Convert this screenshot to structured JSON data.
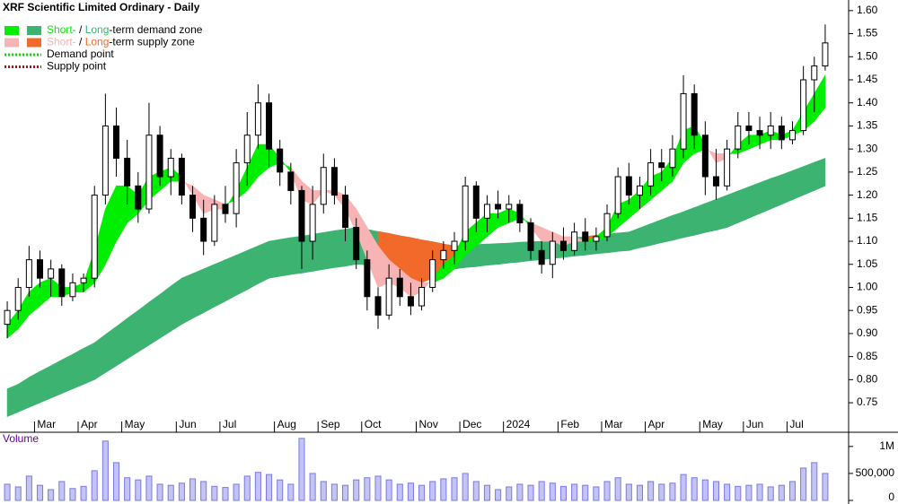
{
  "chart_data": {
    "type": "candlestick",
    "title": "XRF Scientific Limited Ordinary - Daily",
    "categories": [
      null,
      null,
      null,
      "Mar",
      null,
      null,
      null,
      "Apr",
      null,
      null,
      null,
      "May",
      null,
      null,
      null,
      null,
      "Jun",
      null,
      null,
      null,
      "Jul",
      null,
      null,
      null,
      null,
      "Aug",
      null,
      null,
      null,
      "Sep",
      null,
      null,
      null,
      "Oct",
      null,
      null,
      null,
      null,
      "Nov",
      null,
      null,
      null,
      "Dec",
      null,
      null,
      null,
      "2024",
      null,
      null,
      null,
      null,
      "Feb",
      null,
      null,
      null,
      "Mar",
      null,
      null,
      null,
      "Apr",
      null,
      null,
      null,
      null,
      "May",
      null,
      null,
      null,
      "Jun",
      null,
      null,
      null,
      "Jul",
      null,
      null,
      null
    ],
    "open": [
      0.92,
      0.95,
      1.0,
      1.06,
      1.02,
      1.04,
      0.98,
      1.01,
      1.02,
      1.2,
      1.35,
      1.28,
      1.22,
      1.17,
      1.33,
      1.24,
      1.28,
      1.2,
      1.15,
      1.1,
      1.18,
      1.16,
      1.27,
      1.33,
      1.4,
      1.3,
      1.25,
      1.21,
      1.1,
      1.18,
      1.26,
      1.2,
      1.13,
      1.06,
      0.98,
      0.94,
      1.02,
      0.98,
      0.96,
      1.0,
      1.06,
      1.08,
      1.1,
      1.22,
      1.15,
      1.18,
      1.17,
      1.18,
      1.14,
      1.08,
      1.05,
      1.1,
      1.08,
      1.12,
      1.1,
      1.11,
      1.16,
      1.24,
      1.2,
      1.22,
      1.27,
      1.26,
      1.3,
      1.42,
      1.33,
      1.24,
      1.22,
      1.3,
      1.35,
      1.34,
      1.33,
      1.35,
      1.32,
      1.34,
      1.45,
      1.48
    ],
    "high": [
      0.97,
      1.02,
      1.09,
      1.08,
      1.06,
      1.05,
      1.03,
      1.03,
      1.22,
      1.42,
      1.39,
      1.32,
      1.25,
      1.4,
      1.35,
      1.3,
      1.29,
      1.22,
      1.19,
      1.2,
      1.22,
      1.3,
      1.38,
      1.44,
      1.42,
      1.32,
      1.27,
      1.22,
      1.22,
      1.29,
      1.28,
      1.22,
      1.15,
      1.08,
      1.0,
      1.05,
      1.04,
      1.01,
      1.02,
      1.08,
      1.1,
      1.12,
      1.24,
      1.23,
      1.2,
      1.21,
      1.2,
      1.19,
      1.15,
      1.1,
      1.12,
      1.13,
      1.14,
      1.15,
      1.13,
      1.18,
      1.26,
      1.27,
      1.24,
      1.3,
      1.3,
      1.33,
      1.46,
      1.44,
      1.36,
      1.3,
      1.32,
      1.38,
      1.38,
      1.37,
      1.38,
      1.37,
      1.36,
      1.48,
      1.5,
      1.57
    ],
    "low": [
      0.89,
      0.93,
      0.98,
      1.0,
      0.98,
      0.96,
      0.97,
      0.99,
      1.0,
      1.18,
      1.24,
      1.18,
      1.14,
      1.16,
      1.22,
      1.2,
      1.18,
      1.12,
      1.07,
      1.09,
      1.14,
      1.13,
      1.22,
      1.3,
      1.26,
      1.22,
      1.18,
      1.04,
      1.06,
      1.16,
      1.18,
      1.1,
      1.04,
      0.95,
      0.91,
      0.93,
      0.96,
      0.94,
      0.95,
      0.99,
      1.04,
      1.05,
      1.08,
      1.12,
      1.12,
      1.15,
      1.14,
      1.12,
      1.06,
      1.03,
      1.02,
      1.06,
      1.07,
      1.08,
      1.08,
      1.1,
      1.15,
      1.18,
      1.17,
      1.2,
      1.23,
      1.24,
      1.28,
      1.3,
      1.2,
      1.19,
      1.21,
      1.28,
      1.31,
      1.3,
      1.3,
      1.3,
      1.31,
      1.33,
      1.38,
      1.47
    ],
    "close": [
      0.95,
      1.0,
      1.06,
      1.02,
      1.04,
      0.98,
      1.01,
      1.02,
      1.2,
      1.35,
      1.28,
      1.22,
      1.17,
      1.33,
      1.24,
      1.28,
      1.2,
      1.15,
      1.1,
      1.18,
      1.16,
      1.27,
      1.33,
      1.4,
      1.3,
      1.25,
      1.21,
      1.1,
      1.18,
      1.26,
      1.2,
      1.13,
      1.06,
      0.98,
      0.94,
      1.02,
      0.98,
      0.96,
      1.0,
      1.06,
      1.08,
      1.1,
      1.22,
      1.15,
      1.18,
      1.17,
      1.18,
      1.14,
      1.08,
      1.05,
      1.1,
      1.08,
      1.12,
      1.1,
      1.11,
      1.16,
      1.24,
      1.2,
      1.22,
      1.27,
      1.26,
      1.3,
      1.42,
      1.33,
      1.24,
      1.22,
      1.3,
      1.35,
      1.34,
      1.33,
      1.35,
      1.32,
      1.34,
      1.45,
      1.48,
      1.53
    ],
    "candle_colors": {
      "up": "#ffffff",
      "down": "#000000",
      "outline": "#000000"
    },
    "short_zone": {
      "fast": [
        0.92,
        0.95,
        0.99,
        1.01,
        1.02,
        1.0,
        1.0,
        1.01,
        1.08,
        1.17,
        1.22,
        1.22,
        1.2,
        1.24,
        1.25,
        1.26,
        1.24,
        1.2,
        1.16,
        1.17,
        1.17,
        1.21,
        1.26,
        1.31,
        1.31,
        1.28,
        1.25,
        1.19,
        1.18,
        1.21,
        1.2,
        1.17,
        1.12,
        1.06,
        1.0,
        1.01,
        1.0,
        0.98,
        0.99,
        1.02,
        1.05,
        1.07,
        1.12,
        1.14,
        1.16,
        1.16,
        1.17,
        1.16,
        1.13,
        1.1,
        1.1,
        1.09,
        1.1,
        1.1,
        1.11,
        1.13,
        1.18,
        1.19,
        1.21,
        1.24,
        1.25,
        1.28,
        1.34,
        1.35,
        1.31,
        1.27,
        1.28,
        1.31,
        1.33,
        1.33,
        1.34,
        1.33,
        1.34,
        1.38,
        1.42,
        1.46
      ],
      "slow": [
        0.89,
        0.91,
        0.94,
        0.96,
        0.98,
        0.98,
        0.99,
        0.99,
        1.01,
        1.05,
        1.1,
        1.14,
        1.16,
        1.19,
        1.21,
        1.23,
        1.23,
        1.22,
        1.2,
        1.19,
        1.18,
        1.19,
        1.21,
        1.24,
        1.26,
        1.27,
        1.26,
        1.23,
        1.21,
        1.21,
        1.21,
        1.2,
        1.17,
        1.13,
        1.09,
        1.06,
        1.04,
        1.02,
        1.01,
        1.01,
        1.02,
        1.04,
        1.07,
        1.09,
        1.11,
        1.13,
        1.14,
        1.15,
        1.14,
        1.13,
        1.12,
        1.11,
        1.11,
        1.1,
        1.1,
        1.11,
        1.13,
        1.15,
        1.17,
        1.19,
        1.21,
        1.23,
        1.27,
        1.29,
        1.3,
        1.29,
        1.29,
        1.29,
        1.3,
        1.31,
        1.32,
        1.32,
        1.33,
        1.34,
        1.36,
        1.39
      ]
    },
    "long_zone": {
      "fast": [
        0.78,
        0.79,
        0.805,
        0.818,
        0.83,
        0.843,
        0.855,
        0.868,
        0.88,
        0.898,
        0.915,
        0.933,
        0.95,
        0.968,
        0.985,
        1.003,
        1.02,
        1.03,
        1.04,
        1.05,
        1.06,
        1.07,
        1.08,
        1.09,
        1.1,
        1.104,
        1.108,
        1.111,
        1.115,
        1.119,
        1.123,
        1.126,
        1.13,
        1.126,
        1.121,
        1.117,
        1.112,
        1.108,
        1.103,
        1.099,
        1.094,
        1.09,
        1.091,
        1.093,
        1.094,
        1.095,
        1.096,
        1.098,
        1.099,
        1.1,
        1.103,
        1.105,
        1.108,
        1.11,
        1.113,
        1.115,
        1.118,
        1.12,
        1.129,
        1.138,
        1.147,
        1.156,
        1.164,
        1.173,
        1.182,
        1.191,
        1.2,
        1.209,
        1.218,
        1.227,
        1.236,
        1.244,
        1.253,
        1.262,
        1.271,
        1.28
      ],
      "slow": [
        0.72,
        0.73,
        0.74,
        0.75,
        0.76,
        0.77,
        0.78,
        0.79,
        0.8,
        0.815,
        0.83,
        0.845,
        0.86,
        0.875,
        0.89,
        0.905,
        0.92,
        0.933,
        0.945,
        0.958,
        0.97,
        0.983,
        0.995,
        1.008,
        1.02,
        1.024,
        1.028,
        1.031,
        1.035,
        1.039,
        1.043,
        1.046,
        1.05,
        1.049,
        1.048,
        1.047,
        1.046,
        1.044,
        1.043,
        1.042,
        1.041,
        1.04,
        1.043,
        1.045,
        1.048,
        1.05,
        1.053,
        1.055,
        1.058,
        1.06,
        1.063,
        1.065,
        1.068,
        1.07,
        1.073,
        1.075,
        1.078,
        1.08,
        1.086,
        1.091,
        1.097,
        1.102,
        1.108,
        1.113,
        1.119,
        1.124,
        1.13,
        1.14,
        1.15,
        1.16,
        1.17,
        1.18,
        1.19,
        1.2,
        1.21,
        1.22
      ]
    },
    "ylim": [
      0.686,
      1.623
    ],
    "yticks": [
      0.75,
      {
        "value": 0.8,
        "label": "0.80"
      },
      0.85,
      {
        "value": 0.9,
        "label": "0.90"
      },
      0.95,
      {
        "value": 1.0,
        "label": "1.00"
      },
      1.05,
      {
        "value": 1.1,
        "label": "1.10"
      },
      1.15,
      {
        "value": 1.2,
        "label": "1.20"
      },
      1.25,
      {
        "value": 1.3,
        "label": "1.30"
      },
      1.35,
      {
        "value": 1.4,
        "label": "1.40"
      },
      1.45,
      {
        "value": 1.5,
        "label": "1.50"
      },
      1.55,
      {
        "value": 1.6,
        "label": "1.60"
      }
    ],
    "legend": [
      {
        "swatch": [
          "#00ee00",
          "#3cb371"
        ],
        "parts": [
          "Short-",
          " / ",
          "Long",
          "-term demand zone"
        ]
      },
      {
        "swatch": [
          "#f8b4b4",
          "#f26a2a"
        ],
        "parts": [
          "Short-",
          " / ",
          "Long",
          "-term supply zone"
        ]
      },
      {
        "dotted": "#00dd00",
        "parts": [
          "Demand point"
        ]
      },
      {
        "dotted": "#dd0000",
        "parts": [
          "Supply point"
        ]
      }
    ],
    "volume": {
      "label": "Volume",
      "color": "#7a7ae6",
      "values": [
        300000,
        250000,
        450000,
        280000,
        200000,
        350000,
        220000,
        260000,
        550000,
        1100000,
        700000,
        420000,
        380000,
        450000,
        300000,
        280000,
        320000,
        400000,
        350000,
        260000,
        240000,
        300000,
        450000,
        520000,
        480000,
        380000,
        300000,
        1150000,
        500000,
        350000,
        300000,
        280000,
        380000,
        420000,
        450000,
        380000,
        300000,
        320000,
        280000,
        350000,
        400000,
        420000,
        500000,
        350000,
        280000,
        200000,
        250000,
        300000,
        280000,
        350000,
        320000,
        260000,
        300000,
        280000,
        250000,
        350000,
        420000,
        300000,
        280000,
        350000,
        300000,
        320000,
        480000,
        420000,
        380000,
        350000,
        300000,
        260000,
        280000,
        300000,
        250000,
        280000,
        350000,
        600000,
        700000,
        500000
      ],
      "ylim": [
        0,
        1230000
      ],
      "yticks": [
        0,
        {
          "value": 500000,
          "label": "500,000"
        },
        {
          "value": 1000000,
          "label": "1M"
        }
      ]
    }
  }
}
